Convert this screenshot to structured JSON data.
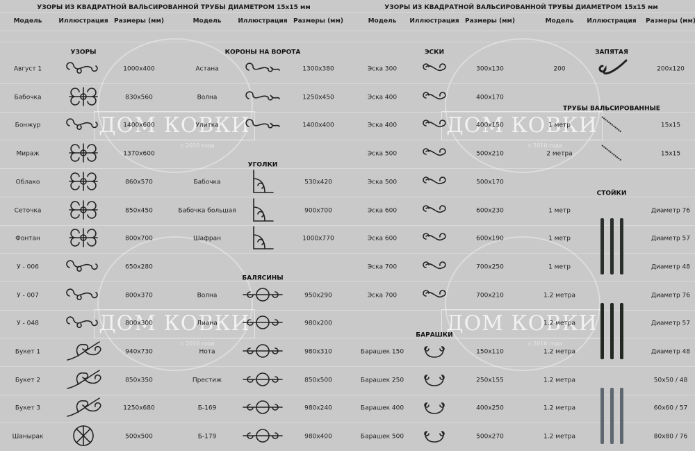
{
  "left": {
    "title": "УЗОРЫ ИЗ КВАДРАТНОЙ ВАЛЬСИРОВАННОЙ ТРУБЫ ДИАМЕТРОМ 15х15 мм",
    "headers": [
      "Модель",
      "Иллюстрация",
      "Размеры (мм)",
      "Модель",
      "Иллюстрация",
      "Размеры (мм)"
    ],
    "sections": [
      {
        "label": "УЗОРЫ",
        "col": "a",
        "row": -0.6
      },
      {
        "label": "КОРОНЫ НА ВОРОТА",
        "col": "b",
        "row": -0.6
      },
      {
        "label": "УГОЛКИ",
        "col": "b",
        "row": 3.4
      },
      {
        "label": "БАЛЯСИНЫ",
        "col": "b",
        "row": 7.4
      }
    ],
    "rows": [
      {
        "model": "Август 1",
        "size": "1000x400",
        "icon": "scroll-ornament-icon",
        "model2": "Астана",
        "size2": "1300x380",
        "icon2": "crown-ornament-icon"
      },
      {
        "model": "Бабочка",
        "size": "830x560",
        "icon": "butterfly-ornament-icon",
        "model2": "Волна",
        "size2": "1250x450",
        "icon2": "crown-ornament-icon"
      },
      {
        "model": "Бонжур",
        "size": "1400x600",
        "icon": "scroll-ornament-icon",
        "model2": "Улитка",
        "size2": "1400x400",
        "icon2": "crown-ornament-icon"
      },
      {
        "model": "Мираж",
        "size": "1370x600",
        "icon": "lattice-ornament-icon",
        "model2": "",
        "size2": "",
        "icon2": ""
      },
      {
        "model": "Облако",
        "size": "860x570",
        "icon": "lattice-ornament-icon",
        "model2": "Бабочка",
        "size2": "530x420",
        "icon2": "corner-icon"
      },
      {
        "model": "Сеточка",
        "size": "850x450",
        "icon": "grid-ornament-icon",
        "model2": "Бабочка большая",
        "size2": "900x700",
        "icon2": "corner-icon"
      },
      {
        "model": "Фонтан",
        "size": "800x700",
        "icon": "fountain-ornament-icon",
        "model2": "Шафран",
        "size2": "1000x770",
        "icon2": "corner-icon"
      },
      {
        "model": "У - 006",
        "size": "650x280",
        "icon": "scroll-ornament-icon",
        "model2": "",
        "size2": "",
        "icon2": ""
      },
      {
        "model": "У - 007",
        "size": "800x370",
        "icon": "scroll-ornament-icon",
        "model2": "Волна",
        "size2": "950x290",
        "icon2": "baluster-icon"
      },
      {
        "model": "У - 048",
        "size": "800x300",
        "icon": "scroll-ornament-icon",
        "model2": "Лиана",
        "size2": "980x200",
        "icon2": "baluster-icon"
      },
      {
        "model": "Букет 1",
        "size": "940x730",
        "icon": "bouquet-ornament-icon",
        "model2": "Нота",
        "size2": "980x310",
        "icon2": "baluster-icon"
      },
      {
        "model": "Букет 2",
        "size": "850x350",
        "icon": "bouquet-ornament-icon",
        "model2": "Престиж",
        "size2": "850x500",
        "icon2": "baluster-icon"
      },
      {
        "model": "Букет 3",
        "size": "1250x680",
        "icon": "bouquet-ornament-icon",
        "model2": "Б-169",
        "size2": "980x240",
        "icon2": "baluster-icon"
      },
      {
        "model": "Шанырак",
        "size": "500x500",
        "icon": "shanyrak-ornament-icon",
        "model2": "Б-179",
        "size2": "980x400",
        "icon2": "baluster-icon"
      }
    ]
  },
  "right": {
    "title": "УЗОРЫ ИЗ КВАДРАТНОЙ ВАЛЬСИРОВАННОЙ ТРУБЫ ДИАМЕТРОМ 15х15 мм",
    "headers": [
      "Модель",
      "Иллюстрация",
      "Размеры (мм)",
      "Модель",
      "Иллюстрация",
      "Размеры (мм)"
    ],
    "sections": [
      {
        "label": "ЭСКИ",
        "col": "a",
        "row": -0.6
      },
      {
        "label": "ЗАПЯТАЯ",
        "col": "b",
        "row": -0.6
      },
      {
        "label": "ТРУБЫ ВАЛЬСИРОВАННЫЕ",
        "col": "b",
        "row": 1.4
      },
      {
        "label": "СТОЙКИ",
        "col": "b",
        "row": 4.4
      },
      {
        "label": "БАРАШКИ",
        "col": "a",
        "row": 9.4
      }
    ],
    "rows": [
      {
        "model": "Эска 300",
        "size": "300x130",
        "icon": "s-scroll-icon",
        "model2": "200",
        "size2": "200x120",
        "icon2": "comma-scroll-icon"
      },
      {
        "model": "Эска 400",
        "size": "400x170",
        "icon": "s-scroll-icon",
        "model2": "",
        "size2": "",
        "icon2": ""
      },
      {
        "model": "Эска 400",
        "size": "400x150",
        "icon": "s-scroll-icon",
        "model2": "1 метр",
        "size2": "15x15",
        "icon2": "twisted-tube-icon"
      },
      {
        "model": "Эска 500",
        "size": "500x210",
        "icon": "s-scroll-icon",
        "model2": "2 метра",
        "size2": "15x15",
        "icon2": "twisted-tube-icon"
      },
      {
        "model": "Эска 500",
        "size": "500x170",
        "icon": "s-scroll-icon",
        "model2": "",
        "size2": "",
        "icon2": ""
      },
      {
        "model": "Эска 600",
        "size": "600x230",
        "icon": "s-scroll-icon",
        "model2": "1 метр",
        "size2": "Диаметр 76",
        "icon2": ""
      },
      {
        "model": "Эска 600",
        "size": "600x190",
        "icon": "s-scroll-icon",
        "model2": "1 метр",
        "size2": "Диаметр 57",
        "icon2": ""
      },
      {
        "model": "Эска 700",
        "size": "700x250",
        "icon": "s-scroll-icon",
        "model2": "1 метр",
        "size2": "Диаметр 48",
        "icon2": ""
      },
      {
        "model": "Эска 700",
        "size": "700x210",
        "icon": "s-scroll-icon",
        "model2": "1.2 метра",
        "size2": "Диаметр 76",
        "icon2": ""
      },
      {
        "model": "",
        "size": "",
        "icon": "",
        "model2": "1.2 метра",
        "size2": "Диаметр 57",
        "icon2": ""
      },
      {
        "model": "Барашек 150",
        "size": "150x110",
        "icon": "ram-scroll-icon",
        "model2": "1.2 метра",
        "size2": "Диаметр 48",
        "icon2": ""
      },
      {
        "model": "Барашек 250",
        "size": "250x155",
        "icon": "ram-scroll-icon",
        "model2": "1.2 метра",
        "size2": "50x50 / 48",
        "icon2": ""
      },
      {
        "model": "Барашек 400",
        "size": "400x250",
        "icon": "ram-scroll-icon",
        "model2": "1.2 метра",
        "size2": "60x60 / 57",
        "icon2": ""
      },
      {
        "model": "Барашек 500",
        "size": "500x270",
        "icon": "ram-scroll-icon",
        "model2": "1.2 метра",
        "size2": "80x80 / 76",
        "icon2": ""
      }
    ],
    "post_groups": [
      {
        "icon": "post-dark-icon",
        "first_row": 5,
        "last_row": 7,
        "color": "#2b2f2b"
      },
      {
        "icon": "post-dark-icon",
        "first_row": 8,
        "last_row": 10,
        "color": "#232823"
      },
      {
        "icon": "post-galvanized-icon",
        "first_row": 11,
        "last_row": 13,
        "color": "#5e6670"
      }
    ]
  },
  "watermark": {
    "brand": "ДОМ КОВКИ",
    "since": "с 2010 года"
  }
}
